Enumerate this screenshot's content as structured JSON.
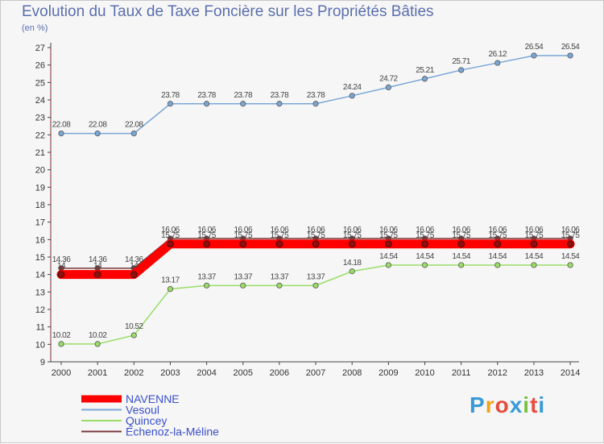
{
  "title": "Evolution du Taux de Taxe Foncière sur les Propriétés Bâties",
  "unit_label": "(en %)",
  "brand": {
    "text": "Proxiti",
    "letters": [
      "P",
      "r",
      "o",
      "x",
      "i",
      "t",
      "i"
    ],
    "colors": [
      "#3a9ad9",
      "#f2a21b",
      "#e84c3d",
      "#3a9ad9",
      "#7ac142",
      "#e84c3d",
      "#3a9ad9"
    ]
  },
  "chart_data": {
    "type": "line",
    "title": "Evolution du Taux de Taxe Foncière sur les Propriétés Bâties",
    "xlabel": "",
    "ylabel": "(en %)",
    "ylim": [
      9,
      27
    ],
    "yticks": [
      9,
      10,
      11,
      12,
      13,
      14,
      15,
      16,
      17,
      18,
      19,
      20,
      21,
      22,
      23,
      24,
      25,
      26,
      27
    ],
    "categories": [
      "2000",
      "2001",
      "2002",
      "2003",
      "2004",
      "2005",
      "2006",
      "2007",
      "2008",
      "2009",
      "2010",
      "2011",
      "2012",
      "2013",
      "2014"
    ],
    "series": [
      {
        "name": "NAVENNE",
        "color": "#ff0000",
        "thick": true,
        "values": [
          14,
          14,
          14,
          15.75,
          15.75,
          15.75,
          15.75,
          15.75,
          15.75,
          15.75,
          15.75,
          15.75,
          15.75,
          15.75,
          15.75
        ],
        "labels": [
          "14",
          "14",
          "14",
          "15.75",
          "15.75",
          "15.75",
          "15.75",
          "15.75",
          "15.75",
          "15.75",
          "15.75",
          "15.75",
          "15.75",
          "15.75",
          "15.75"
        ]
      },
      {
        "name": "Vesoul",
        "color": "#7aa6d6",
        "thick": false,
        "values": [
          22.08,
          22.08,
          22.08,
          23.78,
          23.78,
          23.78,
          23.78,
          23.78,
          24.24,
          24.72,
          25.21,
          25.71,
          26.12,
          26.54,
          26.54
        ],
        "labels": [
          "22.08",
          "22.08",
          "22.08",
          "23.78",
          "23.78",
          "23.78",
          "23.78",
          "23.78",
          "24.24",
          "24.72",
          "25.21",
          "25.71",
          "26.12",
          "26.54",
          "26.54"
        ]
      },
      {
        "name": "Quincey",
        "color": "#99dd66",
        "thick": false,
        "values": [
          10.02,
          10.02,
          10.52,
          13.17,
          13.37,
          13.37,
          13.37,
          13.37,
          14.18,
          14.54,
          14.54,
          14.54,
          14.54,
          14.54,
          14.54
        ],
        "labels": [
          "10.02",
          "10.02",
          "10.52",
          "13.17",
          "13.37",
          "13.37",
          "13.37",
          "13.37",
          "14.18",
          "14.54",
          "14.54",
          "14.54",
          "14.54",
          "14.54",
          "14.54"
        ]
      },
      {
        "name": "Échenoz-la-Méline",
        "color": "#7a3a3a",
        "thick": false,
        "values": [
          14.36,
          14.36,
          14.36,
          16.06,
          16.06,
          16.06,
          16.06,
          16.06,
          16.06,
          16.06,
          16.06,
          16.06,
          16.06,
          16.06,
          16.06
        ],
        "labels": [
          "14.36",
          "14.36",
          "14.36",
          "16.06",
          "16.06",
          "16.06",
          "16.06",
          "16.06",
          "16.06",
          "16.06",
          "16.06",
          "16.06",
          "16.06",
          "16.06",
          "16.06"
        ]
      }
    ],
    "legend": "bottom-left",
    "grid": false
  }
}
